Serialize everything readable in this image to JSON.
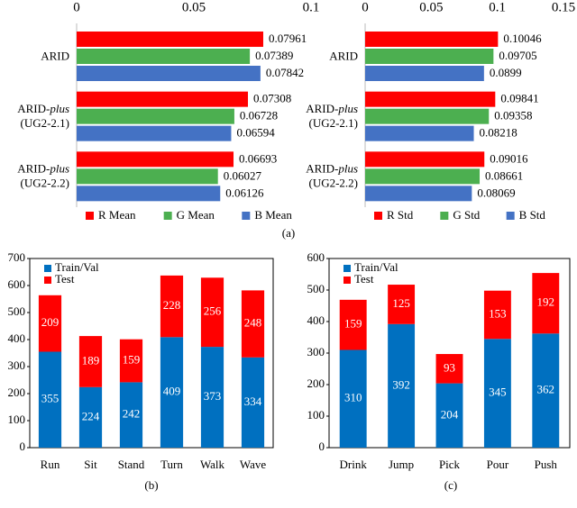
{
  "chart_data": [
    {
      "type": "barh",
      "categories": [
        "ARID",
        "ARID-plus (UG2-2.1)",
        "ARID-plus (UG2-2.2)"
      ],
      "series": [
        {
          "name": "R Mean",
          "color": "#ff0000",
          "values": [
            0.07961,
            0.07308,
            0.06693
          ]
        },
        {
          "name": "G Mean",
          "color": "#4caf50",
          "values": [
            0.07389,
            0.06728,
            0.06027
          ]
        },
        {
          "name": "B Mean",
          "color": "#4472c4",
          "values": [
            0.07842,
            0.06594,
            0.06126
          ]
        }
      ],
      "xlim": [
        0,
        0.1
      ],
      "xticks": [
        0,
        0.05,
        0.1
      ],
      "legend": "bottom",
      "grid": false
    },
    {
      "type": "barh",
      "categories": [
        "ARID",
        "ARID-plus (UG2-2.1)",
        "ARID-plus (UG2-2.2)"
      ],
      "series": [
        {
          "name": "R Std",
          "color": "#ff0000",
          "values": [
            0.10046,
            0.09841,
            0.09016
          ]
        },
        {
          "name": "G Std",
          "color": "#4caf50",
          "values": [
            0.09705,
            0.09358,
            0.08661
          ]
        },
        {
          "name": "B Std",
          "color": "#4472c4",
          "values": [
            0.0899,
            0.08218,
            0.08069
          ]
        }
      ],
      "xlim": [
        0,
        0.15
      ],
      "xticks": [
        0,
        0.05,
        0.1,
        0.15
      ],
      "legend": "bottom",
      "grid": false
    },
    {
      "type": "stacked_bar",
      "categories": [
        "Run",
        "Sit",
        "Stand",
        "Turn",
        "Walk",
        "Wave"
      ],
      "series": [
        {
          "name": "Train/Val",
          "color": "#0070c0",
          "values": [
            355,
            224,
            242,
            409,
            373,
            334
          ]
        },
        {
          "name": "Test",
          "color": "#ff0000",
          "values": [
            209,
            189,
            159,
            228,
            256,
            248
          ]
        }
      ],
      "ylim": [
        0,
        700
      ],
      "yticks": [
        0,
        100,
        200,
        300,
        400,
        500,
        600,
        700
      ],
      "legend": "upper left",
      "grid": false
    },
    {
      "type": "stacked_bar",
      "categories": [
        "Drink",
        "Jump",
        "Pick",
        "Pour",
        "Push"
      ],
      "series": [
        {
          "name": "Train/Val",
          "color": "#0070c0",
          "values": [
            310,
            392,
            204,
            345,
            362
          ]
        },
        {
          "name": "Test",
          "color": "#ff0000",
          "values": [
            159,
            125,
            93,
            153,
            192
          ]
        }
      ],
      "ylim": [
        0,
        600
      ],
      "yticks": [
        0,
        100,
        200,
        300,
        400,
        500,
        600
      ],
      "legend": "upper left",
      "grid": false
    }
  ],
  "captions": [
    "(a)",
    "(b)",
    "(c)"
  ]
}
